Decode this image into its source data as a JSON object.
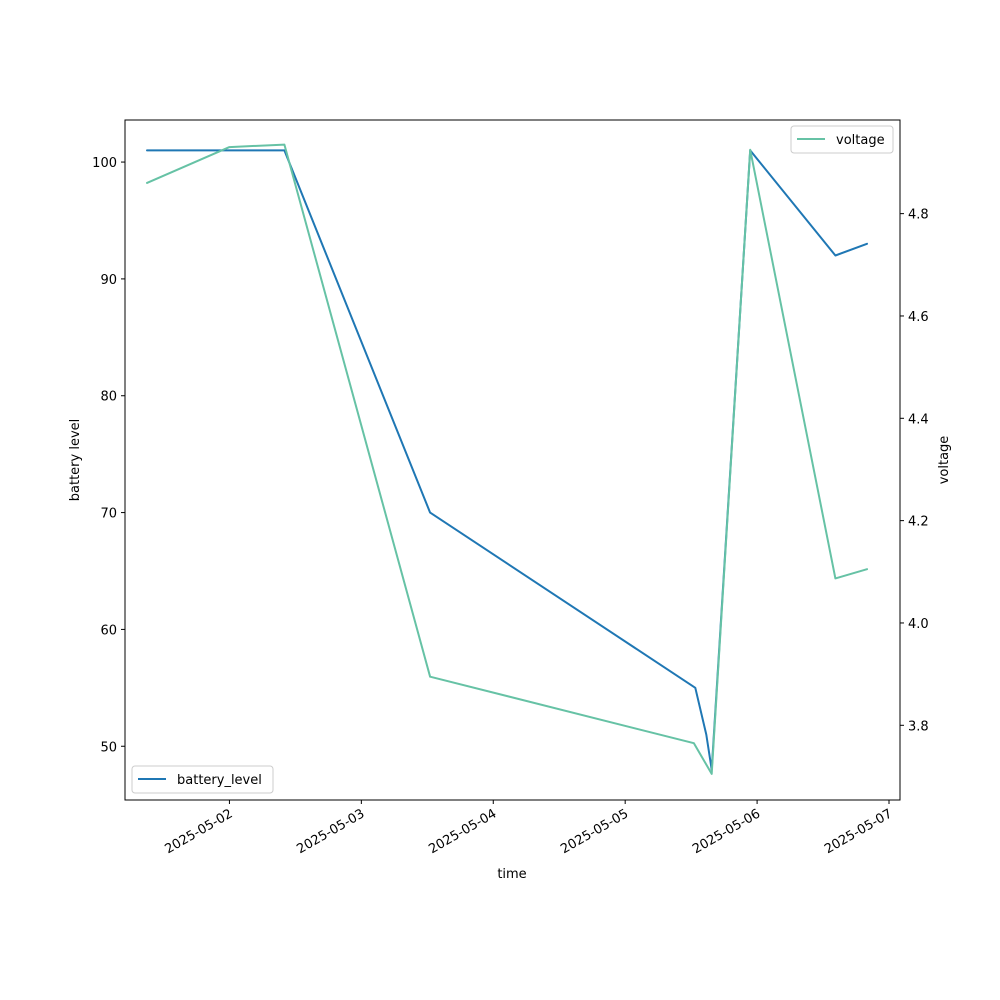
{
  "chart_data": {
    "type": "line",
    "xlabel": "time",
    "ylabel_left": "battery level",
    "ylabel_right": "voltage",
    "x_ticks": [
      "2025-05-02",
      "2025-05-03",
      "2025-05-04",
      "2025-05-05",
      "2025-05-06",
      "2025-05-07"
    ],
    "x_range": [
      "2025-05-01T05:00",
      "2025-05-07T02:00"
    ],
    "y_left_ticks": [
      50,
      60,
      70,
      80,
      90,
      100
    ],
    "y_left_range": [
      45.4,
      103.6
    ],
    "y_right_ticks": [
      3.8,
      4.0,
      4.2,
      4.4,
      4.6,
      4.8
    ],
    "y_right_range": [
      3.654,
      4.983
    ],
    "grid": false,
    "series": [
      {
        "name": "battery_level",
        "axis": "left",
        "color": "#1f77b4",
        "legend_position": "lower-left",
        "points": [
          {
            "x": "2025-05-01T09:00",
            "y": 101
          },
          {
            "x": "2025-05-02T10:00",
            "y": 101
          },
          {
            "x": "2025-05-03T12:30",
            "y": 70
          },
          {
            "x": "2025-05-05T12:45",
            "y": 55
          },
          {
            "x": "2025-05-05T14:45",
            "y": 51
          },
          {
            "x": "2025-05-05T15:45",
            "y": 48
          },
          {
            "x": "2025-05-05T22:45",
            "y": 101
          },
          {
            "x": "2025-05-06T14:15",
            "y": 92
          },
          {
            "x": "2025-05-06T20:00",
            "y": 93
          }
        ]
      },
      {
        "name": "voltage",
        "axis": "right",
        "color": "#66c2a5",
        "legend_position": "upper-right",
        "points": [
          {
            "x": "2025-05-01T09:00",
            "y": 4.86
          },
          {
            "x": "2025-05-02T00:00",
            "y": 4.93
          },
          {
            "x": "2025-05-02T10:00",
            "y": 4.935
          },
          {
            "x": "2025-05-03T12:30",
            "y": 3.895
          },
          {
            "x": "2025-05-05T12:30",
            "y": 3.765
          },
          {
            "x": "2025-05-05T15:45",
            "y": 3.705
          },
          {
            "x": "2025-05-05T22:45",
            "y": 4.925
          },
          {
            "x": "2025-05-06T14:15",
            "y": 4.087
          },
          {
            "x": "2025-05-06T20:00",
            "y": 4.105
          }
        ]
      }
    ]
  }
}
